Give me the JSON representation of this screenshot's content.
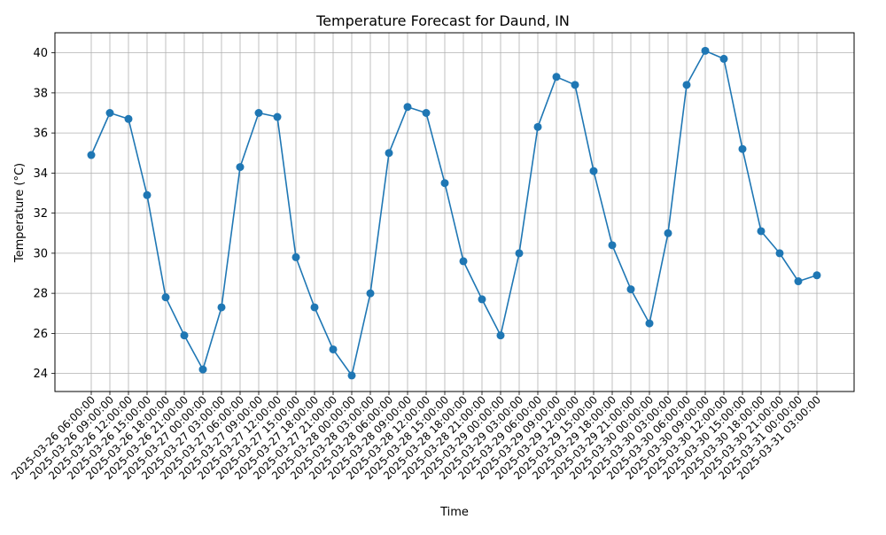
{
  "chart_data": {
    "type": "line",
    "title": "Temperature Forecast for Daund, IN",
    "xlabel": "Time",
    "ylabel": "Temperature (°C)",
    "ylim": [
      23.1,
      41.0
    ],
    "yticks": [
      24,
      26,
      28,
      30,
      32,
      34,
      36,
      38,
      40
    ],
    "grid": true,
    "line_color": "#1f77b4",
    "categories": [
      "2025-03-26 06:00:00",
      "2025-03-26 09:00:00",
      "2025-03-26 12:00:00",
      "2025-03-26 15:00:00",
      "2025-03-26 18:00:00",
      "2025-03-26 21:00:00",
      "2025-03-27 00:00:00",
      "2025-03-27 03:00:00",
      "2025-03-27 06:00:00",
      "2025-03-27 09:00:00",
      "2025-03-27 12:00:00",
      "2025-03-27 15:00:00",
      "2025-03-27 18:00:00",
      "2025-03-27 21:00:00",
      "2025-03-28 00:00:00",
      "2025-03-28 03:00:00",
      "2025-03-28 06:00:00",
      "2025-03-28 09:00:00",
      "2025-03-28 12:00:00",
      "2025-03-28 15:00:00",
      "2025-03-28 18:00:00",
      "2025-03-28 21:00:00",
      "2025-03-29 00:00:00",
      "2025-03-29 03:00:00",
      "2025-03-29 06:00:00",
      "2025-03-29 09:00:00",
      "2025-03-29 12:00:00",
      "2025-03-29 15:00:00",
      "2025-03-29 18:00:00",
      "2025-03-29 21:00:00",
      "2025-03-30 00:00:00",
      "2025-03-30 03:00:00",
      "2025-03-30 06:00:00",
      "2025-03-30 09:00:00",
      "2025-03-30 12:00:00",
      "2025-03-30 15:00:00",
      "2025-03-30 18:00:00",
      "2025-03-30 21:00:00",
      "2025-03-31 00:00:00",
      "2025-03-31 03:00:00"
    ],
    "series": [
      {
        "values": [
          34.9,
          37.0,
          36.7,
          32.9,
          27.8,
          25.9,
          24.2,
          27.3,
          34.3,
          37.0,
          36.8,
          29.8,
          27.3,
          25.2,
          23.9,
          28.0,
          35.0,
          37.3,
          37.0,
          33.5,
          29.6,
          27.7,
          25.9,
          30.0,
          36.3,
          38.8,
          38.4,
          34.1,
          30.4,
          28.2,
          26.5,
          31.0,
          38.4,
          40.1,
          39.7,
          35.2,
          31.1,
          30.0,
          28.6,
          28.9
        ]
      }
    ]
  }
}
